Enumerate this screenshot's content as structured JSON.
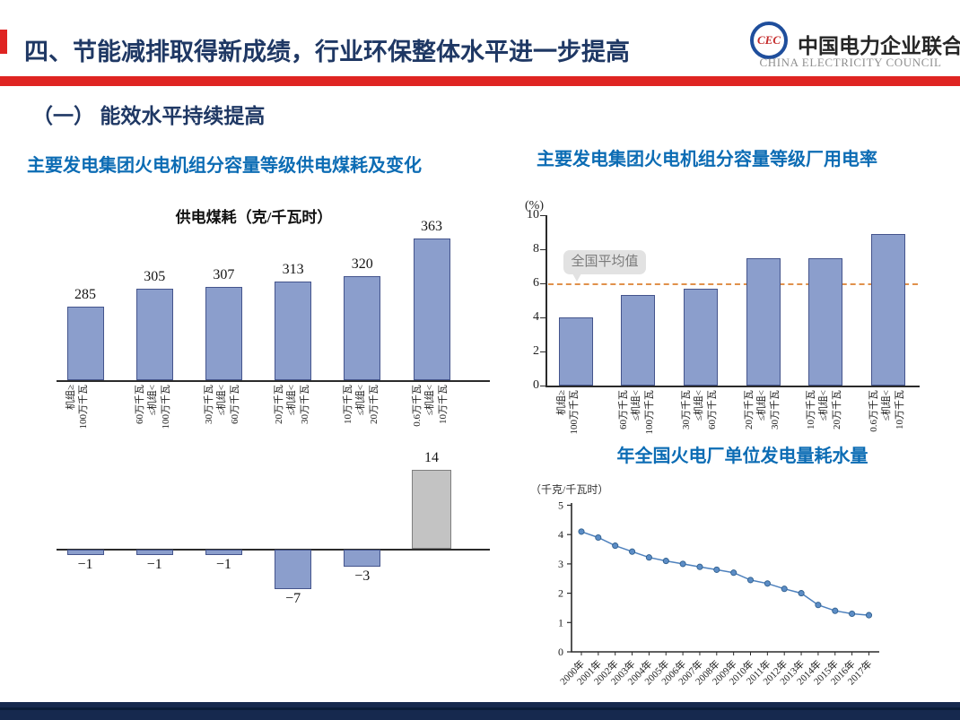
{
  "page": {
    "header": {
      "title": "四、节能减排取得新成绩，行业环保整体水平进一步提高",
      "logo": {
        "org_cn": "中国电力企业联合会",
        "org_en": "CHINA ELECTRICITY COUNCIL",
        "emblem": "CEC"
      }
    },
    "section_heading": "（一） 能效水平持续提高",
    "subtitles": {
      "coal": "主要发电集团火电机组分容量等级供电煤耗及变化",
      "aux_power": "主要发电集团火电机组分容量等级厂用电率",
      "water": "年全国火电厂单位发电量耗水量"
    },
    "colors": {
      "navy": "#1F3864",
      "accent_red": "#DF2422",
      "subtitle_blue": "#0C6CB4",
      "bar_blue": "#8B9ECC",
      "bar_border": "#44548C",
      "bar_gray": "#C3C3C3",
      "gray_border": "#7F7F7F",
      "avg_line_orange": "#E0914B",
      "line_blue": "#4E81BD",
      "footer_navy": "#16294E",
      "footer_dark": "#0A1C38"
    }
  },
  "chart_data": [
    {
      "id": "coal_consumption",
      "type": "bar",
      "title": "供电煤耗（克/千瓦时）",
      "categories": [
        "机组≥\n100万千瓦",
        "60万千瓦\n≤机组<\n100万千瓦",
        "30万千瓦\n≤机组<\n60万千瓦",
        "20万千瓦\n≤机组<\n30万千瓦",
        "10万千瓦\n≤机组<\n20万千瓦",
        "0.6万千瓦\n≤机组<\n10万千瓦"
      ],
      "values": [
        285,
        305,
        307,
        313,
        320,
        363
      ],
      "labels": [
        "285",
        "305",
        "307",
        "313",
        "320",
        "363"
      ],
      "ylim": [
        200,
        380
      ],
      "grid": false,
      "legend": "none"
    },
    {
      "id": "coal_consumption_change",
      "type": "bar",
      "title": "",
      "categories": [
        "机组≥100万千瓦",
        "60万千瓦≤机组<100万千瓦",
        "30万千瓦≤机组<60万千瓦",
        "20万千瓦≤机组<30万千瓦",
        "10万千瓦≤机组<20万千瓦",
        "0.6万千瓦≤机组<10万千瓦"
      ],
      "values": [
        -1,
        -1,
        -1,
        -7,
        -3,
        14
      ],
      "labels": [
        "−1",
        "−1",
        "−1",
        "−7",
        "−3",
        "14"
      ],
      "bar_styles": [
        "blue",
        "blue",
        "blue",
        "blue",
        "blue",
        "gray"
      ],
      "ylim": [
        -9,
        16
      ],
      "grid": false,
      "legend": "none"
    },
    {
      "id": "aux_power_rate",
      "type": "bar",
      "title": "",
      "ylabel": "(%)",
      "yticks": [
        0,
        2,
        4,
        6,
        8,
        10
      ],
      "ylim": [
        0,
        10
      ],
      "categories": [
        "机组≥\n100万千瓦",
        "60万千瓦\n≤机组<\n100万千瓦",
        "30万千瓦\n≤机组<\n60万千瓦",
        "20万千瓦\n≤机组<\n30万千瓦",
        "10万千瓦\n≤机组<\n20万千瓦",
        "0.6万千瓦\n≤机组<\n10万千瓦"
      ],
      "values": [
        4.0,
        5.3,
        5.7,
        7.5,
        7.5,
        8.9
      ],
      "avg_line": {
        "value": 6,
        "label": "全国平均值"
      },
      "grid": false,
      "legend": "none"
    },
    {
      "id": "water_per_kwh",
      "type": "line",
      "title": "年全国火电厂单位发电量耗水量",
      "unit_label": "（千克/千瓦时）",
      "yticks": [
        0,
        1,
        2,
        3,
        4,
        5
      ],
      "ylim": [
        0,
        5
      ],
      "x": [
        "2000年",
        "2001年",
        "2002年",
        "2003年",
        "2004年",
        "2005年",
        "2006年",
        "2007年",
        "2008年",
        "2009年",
        "2010年",
        "2011年",
        "2012年",
        "2013年",
        "2014年",
        "2015年",
        "2016年",
        "2017年"
      ],
      "values": [
        4.1,
        3.9,
        3.62,
        3.42,
        3.22,
        3.1,
        3.0,
        2.9,
        2.8,
        2.7,
        2.45,
        2.33,
        2.15,
        2.0,
        1.6,
        1.4,
        1.3,
        1.25
      ],
      "grid": false,
      "legend": "none"
    }
  ]
}
